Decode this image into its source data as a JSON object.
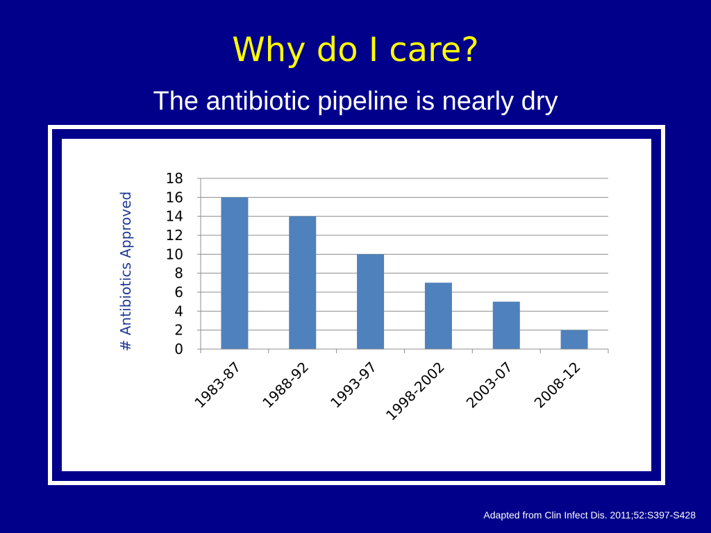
{
  "slide": {
    "title": "Why do I care?",
    "subtitle": "The antibiotic pipeline is nearly dry",
    "citation": "Adapted from Clin Infect Dis. 2011;52:S397-S428",
    "background_color": "#00008b",
    "title_color": "#ffff00"
  },
  "chart_data": {
    "type": "bar",
    "title": "",
    "xlabel": "",
    "ylabel": "# Antibiotics Approved",
    "categories": [
      "1983-87",
      "1988-92",
      "1993-97",
      "1998-2002",
      "2003-07",
      "2008-12"
    ],
    "values": [
      16,
      14,
      10,
      7,
      5,
      2
    ],
    "ylim": [
      0,
      18
    ],
    "y_ticks": [
      "0",
      "2",
      "4",
      "6",
      "8",
      "10",
      "12",
      "14",
      "16",
      "18"
    ],
    "grid": true,
    "legend": "none",
    "bar_color": "#4f81bd",
    "ylabel_color": "#1f3a93"
  }
}
